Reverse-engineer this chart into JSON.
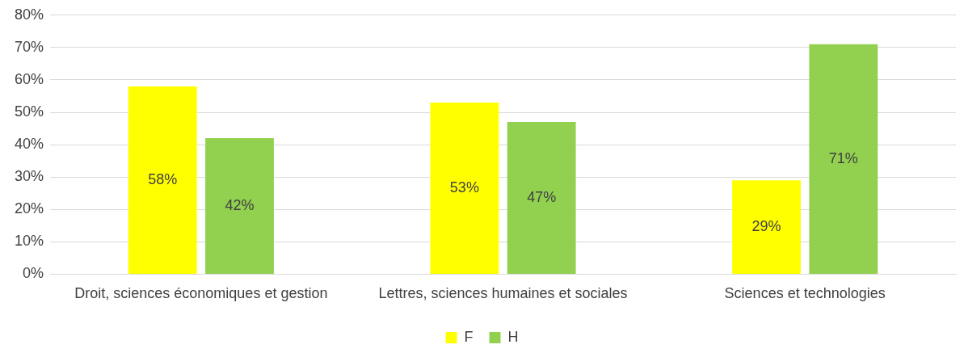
{
  "chart_data": {
    "type": "bar",
    "categories": [
      "Droit, sciences économiques et gestion",
      "Lettres, sciences humaines et sociales",
      "Sciences et technologies"
    ],
    "series": [
      {
        "name": "F",
        "color": "#ffff00",
        "values": [
          58,
          53,
          29
        ],
        "value_labels": [
          "58%",
          "53%",
          "29%"
        ]
      },
      {
        "name": "H",
        "color": "#92d050",
        "values": [
          42,
          47,
          71
        ],
        "value_labels": [
          "42%",
          "47%",
          "71%"
        ]
      }
    ],
    "ylim": [
      0,
      80
    ],
    "yticks": [
      {
        "value": 0,
        "label": "0%"
      },
      {
        "value": 10,
        "label": "10%"
      },
      {
        "value": 20,
        "label": "20%"
      },
      {
        "value": 30,
        "label": "30%"
      },
      {
        "value": 40,
        "label": "40%"
      },
      {
        "value": 50,
        "label": "50%"
      },
      {
        "value": 60,
        "label": "60%"
      },
      {
        "value": 70,
        "label": "70%"
      },
      {
        "value": 80,
        "label": "80%"
      }
    ],
    "grid": "y",
    "legend": "bottom"
  }
}
